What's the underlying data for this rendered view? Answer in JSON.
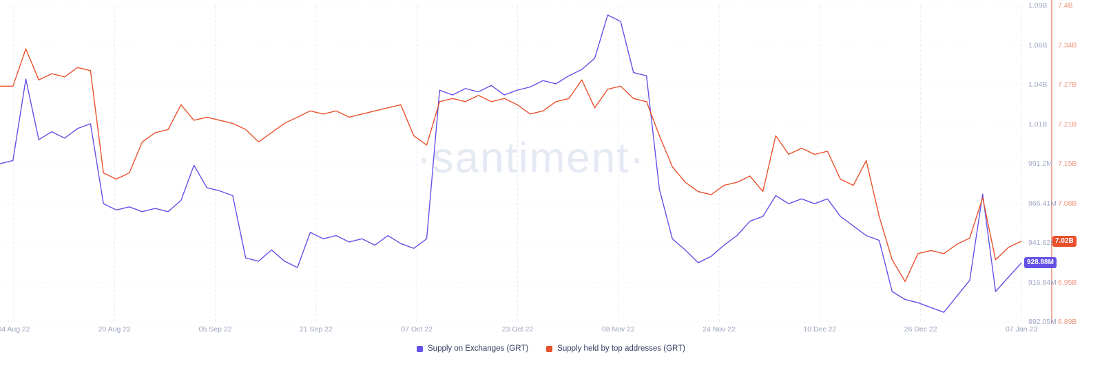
{
  "watermark": "·santiment·",
  "legend": {
    "items": [
      {
        "label": "Supply on Exchanges (GRT)",
        "color": "#6450e6"
      },
      {
        "label": "Supply held by top addresses (GRT)",
        "color": "#e8512b"
      }
    ]
  },
  "chart_data": {
    "type": "line",
    "x_tick_labels": [
      "04 Aug 22",
      "20 Aug 22",
      "05 Sep 22",
      "21 Sep 22",
      "07 Oct 22",
      "23 Oct 22",
      "08 Nov 22",
      "24 Nov 22",
      "10 Dec 22",
      "26 Dec 22",
      "07 Jan 23"
    ],
    "grid": "dotted",
    "legend_position": "bottom-center",
    "series": [
      {
        "name": "Supply on Exchanges (GRT)",
        "color": "#6450e6",
        "axis_side": "right-inner",
        "unit": "million GRT",
        "axis": {
          "min": 892.05,
          "max": 1090
        },
        "tick_labels": [
          "1.09B",
          "1.06B",
          "1.04B",
          "1.01B",
          "991.2M",
          "966.41M",
          "941.62M",
          "916.84M",
          "892.05M"
        ],
        "current_value": "928.88M",
        "values": [
          991,
          993,
          1044,
          1006,
          1011,
          1007,
          1013,
          1016,
          966,
          962,
          964,
          961,
          963,
          961,
          968,
          990,
          976,
          974,
          971,
          932,
          930,
          937,
          930,
          926,
          948,
          944,
          946,
          942,
          944,
          940,
          946,
          941,
          938,
          944,
          1037,
          1034,
          1038,
          1036,
          1040,
          1034,
          1037,
          1039,
          1043,
          1041,
          1046,
          1050,
          1057,
          1084,
          1080,
          1048,
          1046,
          975,
          944,
          937,
          929,
          933,
          940,
          946,
          955,
          958,
          971,
          966,
          969,
          966,
          969,
          958,
          952,
          946,
          943,
          911,
          906,
          904,
          901,
          898,
          908,
          918,
          972,
          911,
          920,
          928.88
        ]
      },
      {
        "name": "Supply held by top addresses (GRT)",
        "color": "#e8512b",
        "axis_side": "right-outer",
        "unit": "billion GRT",
        "axis": {
          "min": 6.89,
          "max": 7.4
        },
        "tick_labels": [
          "7.4B",
          "7.34B",
          "7.27B",
          "7.21B",
          "7.15B",
          "7.08B",
          "7.02B",
          "6.95B",
          "6.89B"
        ],
        "current_value": "7.02B",
        "values": [
          7.27,
          7.27,
          7.33,
          7.28,
          7.29,
          7.285,
          7.3,
          7.295,
          7.13,
          7.12,
          7.13,
          7.18,
          7.195,
          7.2,
          7.24,
          7.215,
          7.22,
          7.215,
          7.21,
          7.2,
          7.18,
          7.195,
          7.21,
          7.22,
          7.23,
          7.225,
          7.23,
          7.22,
          7.225,
          7.23,
          7.235,
          7.24,
          7.19,
          7.175,
          7.245,
          7.25,
          7.245,
          7.255,
          7.245,
          7.25,
          7.24,
          7.225,
          7.23,
          7.245,
          7.25,
          7.28,
          7.235,
          7.265,
          7.27,
          7.25,
          7.245,
          7.19,
          7.14,
          7.115,
          7.1,
          7.095,
          7.11,
          7.115,
          7.125,
          7.1,
          7.19,
          7.16,
          7.17,
          7.16,
          7.165,
          7.12,
          7.11,
          7.15,
          7.06,
          6.99,
          6.955,
          7.0,
          7.005,
          7.0,
          7.015,
          7.025,
          7.09,
          6.99,
          7.01,
          7.02
        ]
      }
    ]
  }
}
